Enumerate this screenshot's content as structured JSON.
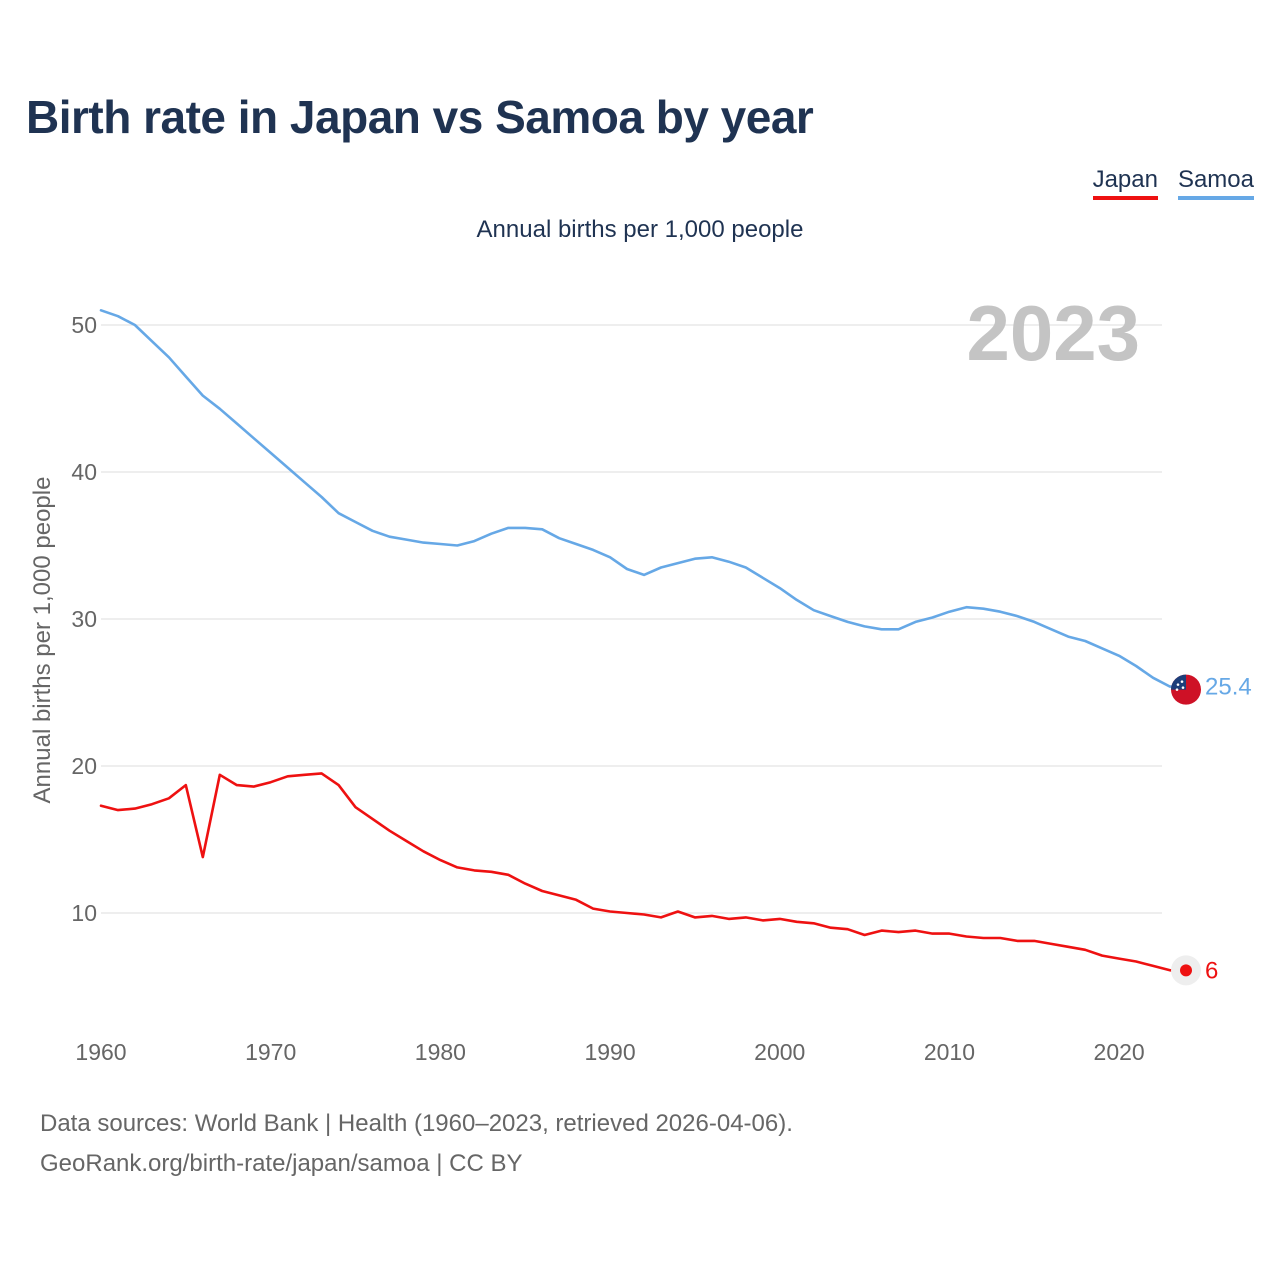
{
  "title": "Birth rate in Japan vs Samoa by year",
  "legend": {
    "japan": "Japan",
    "samoa": "Samoa"
  },
  "subtitle": "Annual births per 1,000 people",
  "year_mark": "2023",
  "footer": {
    "line1": "Data sources: World Bank | Health (1960–2023, retrieved 2026-04-06).",
    "line2": "GeoRank.org/birth-rate/japan/samoa | CC BY"
  },
  "colors": {
    "japan": "#ee1111",
    "samoa": "#66a8e6",
    "text": "#1f3352",
    "grid": "#e8e8e8"
  },
  "chart_data": {
    "type": "line",
    "title": "Birth rate in Japan vs Samoa by year",
    "subtitle": "Annual births per 1,000 people",
    "xlabel": "",
    "ylabel": "Annual births per 1,000 people",
    "xlim": [
      1960,
      2023
    ],
    "ylim": [
      5,
      52
    ],
    "x_ticks": [
      1960,
      1970,
      1980,
      1990,
      2000,
      2010,
      2020
    ],
    "y_ticks": [
      10,
      20,
      30,
      40,
      50
    ],
    "grid": true,
    "legend": "top-right",
    "x": [
      1960,
      1961,
      1962,
      1963,
      1964,
      1965,
      1966,
      1967,
      1968,
      1969,
      1970,
      1971,
      1972,
      1973,
      1974,
      1975,
      1976,
      1977,
      1978,
      1979,
      1980,
      1981,
      1982,
      1983,
      1984,
      1985,
      1986,
      1987,
      1988,
      1989,
      1990,
      1991,
      1992,
      1993,
      1994,
      1995,
      1996,
      1997,
      1998,
      1999,
      2000,
      2001,
      2002,
      2003,
      2004,
      2005,
      2006,
      2007,
      2008,
      2009,
      2010,
      2011,
      2012,
      2013,
      2014,
      2015,
      2016,
      2017,
      2018,
      2019,
      2020,
      2021,
      2022,
      2023
    ],
    "series": [
      {
        "name": "Japan",
        "color": "#ee1111",
        "end_label": "6",
        "values": [
          17.3,
          17.0,
          17.1,
          17.4,
          17.8,
          18.7,
          13.8,
          19.4,
          18.7,
          18.6,
          18.9,
          19.3,
          19.4,
          19.5,
          18.7,
          17.2,
          16.4,
          15.6,
          14.9,
          14.2,
          13.6,
          13.1,
          12.9,
          12.8,
          12.6,
          12.0,
          11.5,
          11.2,
          10.9,
          10.3,
          10.1,
          10.0,
          9.9,
          9.7,
          10.1,
          9.7,
          9.8,
          9.6,
          9.7,
          9.5,
          9.6,
          9.4,
          9.3,
          9.0,
          8.9,
          8.5,
          8.8,
          8.7,
          8.8,
          8.6,
          8.6,
          8.4,
          8.3,
          8.3,
          8.1,
          8.1,
          7.9,
          7.7,
          7.5,
          7.1,
          6.9,
          6.7,
          6.4,
          6.1
        ]
      },
      {
        "name": "Samoa",
        "color": "#66a8e6",
        "end_label": "25.4",
        "values": [
          51.0,
          50.6,
          50.0,
          48.9,
          47.8,
          46.5,
          45.2,
          44.3,
          43.3,
          42.3,
          41.3,
          40.3,
          39.3,
          38.3,
          37.2,
          36.6,
          36.0,
          35.6,
          35.4,
          35.2,
          35.1,
          35.0,
          35.3,
          35.8,
          36.2,
          36.2,
          36.1,
          35.5,
          35.1,
          34.7,
          34.2,
          33.4,
          33.0,
          33.5,
          33.8,
          34.1,
          34.2,
          33.9,
          33.5,
          32.8,
          32.1,
          31.3,
          30.6,
          30.2,
          29.8,
          29.5,
          29.3,
          29.3,
          29.8,
          30.1,
          30.5,
          30.8,
          30.7,
          30.5,
          30.2,
          29.8,
          29.3,
          28.8,
          28.5,
          28.0,
          27.5,
          26.8,
          26.0,
          25.4
        ]
      }
    ]
  }
}
